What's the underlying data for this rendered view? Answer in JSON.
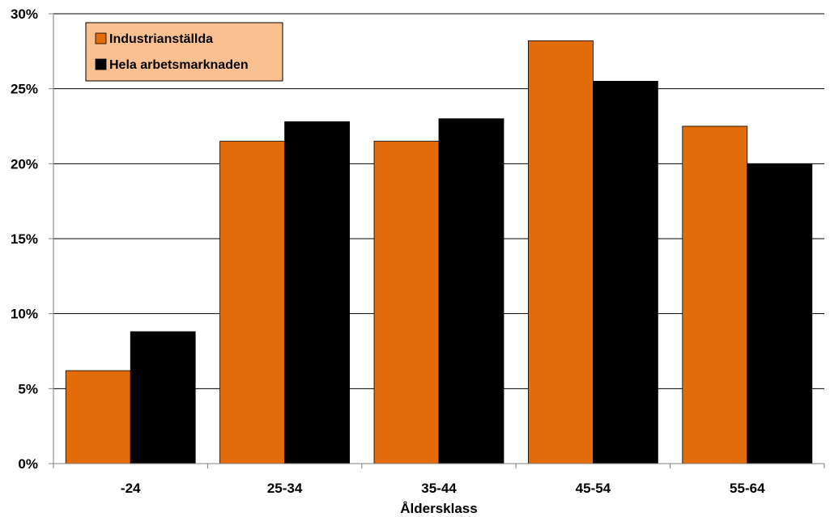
{
  "chart_data": {
    "type": "bar",
    "title": "",
    "xlabel": "Åldersklass",
    "ylabel": "",
    "categories": [
      "-24",
      "25-34",
      "35-44",
      "45-54",
      "55-64"
    ],
    "series": [
      {
        "name": "Industrianställda",
        "color": "#E36C0A",
        "values": [
          6.2,
          21.5,
          21.5,
          28.2,
          22.5
        ]
      },
      {
        "name": "Hela arbetsmarknaden",
        "color": "#000000",
        "values": [
          8.8,
          22.8,
          23.0,
          25.5,
          20.0
        ]
      }
    ],
    "ylim": [
      0,
      30
    ],
    "yticks": [
      0,
      5,
      10,
      15,
      20,
      25,
      30
    ],
    "ytick_labels": [
      "0%",
      "5%",
      "10%",
      "15%",
      "20%",
      "25%",
      "30%"
    ],
    "grid": true,
    "legend": {
      "placement": "top-left",
      "background": "#FAC090"
    }
  }
}
